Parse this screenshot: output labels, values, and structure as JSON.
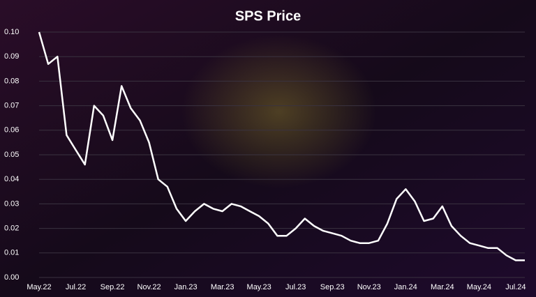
{
  "chart_data": {
    "type": "line",
    "title": "SPS Price",
    "categories": [
      "May.22",
      null,
      null,
      null,
      "Jul.22",
      null,
      null,
      null,
      "Sep.22",
      null,
      null,
      null,
      "Nov.22",
      null,
      null,
      null,
      "Jan.23",
      null,
      null,
      null,
      "Mar.23",
      null,
      null,
      null,
      "May.23",
      null,
      null,
      null,
      "Jul.23",
      null,
      null,
      null,
      "Sep.23",
      null,
      null,
      null,
      "Nov.23",
      null,
      null,
      null,
      "Jan.24",
      null,
      null,
      null,
      "Mar.24",
      null,
      null,
      null,
      "May.24",
      null,
      null,
      null,
      "Jul.24",
      null
    ],
    "values": [
      0.1,
      0.087,
      0.09,
      0.058,
      0.052,
      0.046,
      0.07,
      0.066,
      0.056,
      0.078,
      0.069,
      0.064,
      0.055,
      0.04,
      0.037,
      0.028,
      0.023,
      0.027,
      0.03,
      0.028,
      0.027,
      0.03,
      0.029,
      0.027,
      0.025,
      0.022,
      0.017,
      0.017,
      0.02,
      0.024,
      0.021,
      0.019,
      0.018,
      0.017,
      0.015,
      0.014,
      0.014,
      0.015,
      0.022,
      0.032,
      0.036,
      0.031,
      0.023,
      0.024,
      0.029,
      0.021,
      0.017,
      0.014,
      0.013,
      0.012,
      0.012,
      0.009,
      0.007,
      0.007
    ],
    "color": "#ffffff",
    "ylim": [
      0,
      0.1
    ],
    "yticks": [
      {
        "value": 0,
        "label": "0.00"
      },
      0.01,
      0.02,
      0.03,
      0.04,
      0.05,
      0.06,
      0.07,
      0.08,
      0.09,
      {
        "value": 0.1,
        "label": "0.10"
      }
    ],
    "grid": true
  }
}
